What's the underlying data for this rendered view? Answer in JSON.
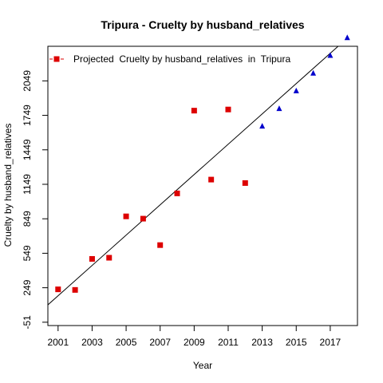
{
  "chart_data": {
    "type": "scatter",
    "title": "Tripura  -  Cruelty by husband_relatives",
    "xlabel": "Year",
    "ylabel": "Cruelty by husband_relatives",
    "xlim": [
      2000.4,
      2018.6
    ],
    "ylim": [
      -80,
      2350
    ],
    "x_ticks": [
      2001,
      2003,
      2005,
      2007,
      2009,
      2011,
      2013,
      2015,
      2017
    ],
    "y_ticks": [
      -51,
      249,
      549,
      849,
      1149,
      1449,
      1749,
      2049
    ],
    "grid": false,
    "legend_position": "top-left",
    "series": [
      {
        "name": "Projected  Cruelty by husband_relatives  in  Tripura",
        "marker": "square",
        "color": "#dd0000",
        "x": [
          2001,
          2002,
          2003,
          2004,
          2005,
          2006,
          2007,
          2008,
          2009,
          2010,
          2011,
          2012
        ],
        "y": [
          235,
          230,
          500,
          510,
          870,
          850,
          620,
          1070,
          1790,
          1190,
          1800,
          1160
        ]
      },
      {
        "marker": "triangle",
        "color": "#0000cc",
        "x": [
          2013,
          2014,
          2015,
          2016,
          2017,
          2018
        ],
        "y": [
          1655,
          1808,
          1962,
          2116,
          2270,
          2425
        ]
      }
    ],
    "trend_line": {
      "color": "#000000",
      "x": [
        2000.4,
        2018.6
      ],
      "y": [
        100,
        2500
      ]
    }
  }
}
